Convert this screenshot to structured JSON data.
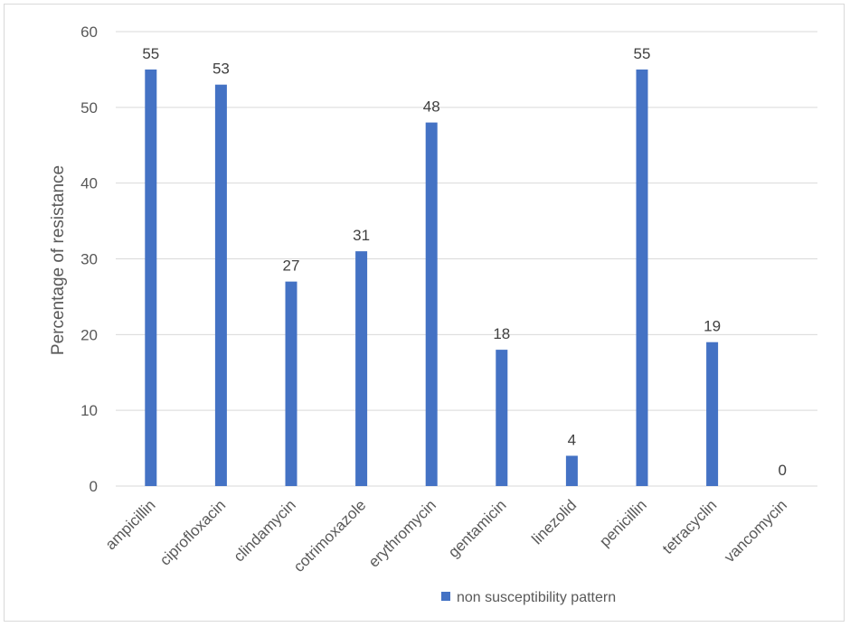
{
  "chart_data": {
    "type": "bar",
    "categories": [
      "ampicillin",
      "ciprofloxacin",
      "clindamycin",
      "cotrimoxazole",
      "erythromycin",
      "gentamicin",
      "linezolid",
      "penicillin",
      "tetracyclin",
      "vancomycin"
    ],
    "series": [
      {
        "name": "non susceptibility pattern",
        "values": [
          55,
          53,
          27,
          31,
          48,
          18,
          4,
          55,
          19,
          0
        ],
        "color": "#4472c4"
      }
    ],
    "ylabel": "Percentage of resistance",
    "ylim": [
      0,
      60
    ],
    "yticks": [
      0,
      10,
      20,
      30,
      40,
      50,
      60
    ],
    "grid": true,
    "legend": "bottom"
  }
}
